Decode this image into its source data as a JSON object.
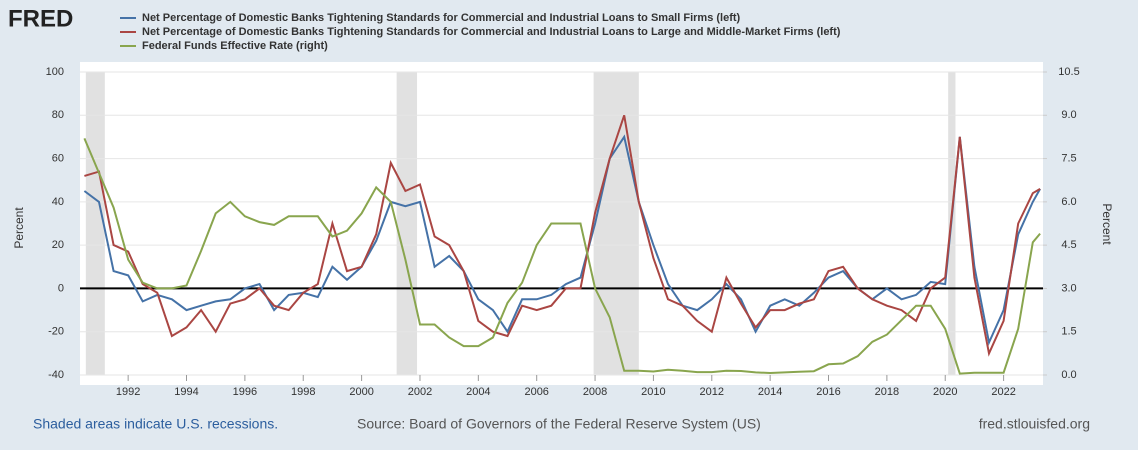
{
  "chart_data": {
    "type": "line",
    "logo": "FRED",
    "footnote": "Shaded areas indicate U.S. recessions.",
    "source": "Source: Board of Governors of the Federal Reserve System (US)",
    "site": "fred.stlouisfed.org",
    "ylabel": "Percent",
    "y2label": "Percent",
    "xlim": [
      1990.35,
      2023.35
    ],
    "xticks": [
      1992,
      1994,
      1996,
      1998,
      2000,
      2002,
      2004,
      2006,
      2008,
      2010,
      2012,
      2014,
      2016,
      2018,
      2020,
      2022
    ],
    "ylim": [
      -40,
      100
    ],
    "yticks": [
      -40,
      -20,
      0,
      20,
      40,
      60,
      80,
      100
    ],
    "y2lim": [
      0,
      10.5
    ],
    "y2ticks": [
      {
        "value": 0,
        "label": "0.0"
      },
      1.5,
      {
        "value": 3,
        "label": "3.0"
      },
      4.5,
      {
        "value": 6,
        "label": "6.0"
      },
      7.5,
      {
        "value": 9,
        "label": "9.0"
      },
      10.5
    ],
    "grid": true,
    "recessions": [
      [
        1990.55,
        1991.2
      ],
      [
        2001.2,
        2001.9
      ],
      [
        2007.95,
        2009.5
      ],
      [
        2020.1,
        2020.35
      ]
    ],
    "x": [
      1990.5,
      1991.0,
      1991.5,
      1992.0,
      1992.5,
      1993.0,
      1993.5,
      1994.0,
      1994.5,
      1995.0,
      1995.5,
      1996.0,
      1996.5,
      1997.0,
      1997.5,
      1998.0,
      1998.5,
      1999.0,
      1999.5,
      2000.0,
      2000.5,
      2001.0,
      2001.5,
      2002.0,
      2002.5,
      2003.0,
      2003.5,
      2004.0,
      2004.5,
      2005.0,
      2005.5,
      2006.0,
      2006.5,
      2007.0,
      2007.5,
      2008.0,
      2008.5,
      2009.0,
      2009.5,
      2010.0,
      2010.5,
      2011.0,
      2011.5,
      2012.0,
      2012.5,
      2013.0,
      2013.5,
      2014.0,
      2014.5,
      2015.0,
      2015.5,
      2016.0,
      2016.5,
      2017.0,
      2017.5,
      2018.0,
      2018.5,
      2019.0,
      2019.5,
      2020.0,
      2020.5,
      2021.0,
      2021.5,
      2022.0,
      2022.5,
      2023.0,
      2023.25
    ],
    "series": [
      {
        "name": "Net Percentage of Domestic Banks Tightening Standards for Commercial and Industrial Loans to Small Firms (left)",
        "color": "#4572a7",
        "values": [
          45,
          40,
          8,
          6,
          -6,
          -3,
          -5,
          -10,
          -8,
          -6,
          -5,
          0,
          2,
          -10,
          -3,
          -2,
          -4,
          10,
          4,
          10,
          22,
          40,
          38,
          40,
          10,
          15,
          8,
          -5,
          -10,
          -20,
          -5,
          -5,
          -3,
          2,
          5,
          30,
          60,
          70,
          40,
          20,
          2,
          -8,
          -10,
          -5,
          2,
          -5,
          -20,
          -8,
          -5,
          -8,
          -2,
          5,
          8,
          0,
          -5,
          0,
          -5,
          -3,
          3,
          2,
          70,
          10,
          -25,
          -10,
          25,
          40,
          46
        ]
      },
      {
        "name": "Net Percentage of Domestic Banks Tightening Standards for Commercial and Industrial Loans to Large and Middle-Market Firms (left)",
        "color": "#aa4643",
        "values": [
          52,
          54,
          20,
          17,
          2,
          -2,
          -22,
          -18,
          -10,
          -20,
          -7,
          -5,
          0,
          -8,
          -10,
          -2,
          2,
          30,
          8,
          10,
          25,
          58,
          45,
          48,
          24,
          20,
          8,
          -15,
          -20,
          -22,
          -8,
          -10,
          -8,
          0,
          0,
          35,
          60,
          80,
          40,
          14,
          -5,
          -8,
          -15,
          -20,
          5,
          -7,
          -18,
          -10,
          -10,
          -7,
          -5,
          8,
          10,
          0,
          -5,
          -8,
          -10,
          -15,
          0,
          5,
          70,
          5,
          -30,
          -15,
          30,
          44,
          46
        ]
      },
      {
        "name": "Federal Funds Effective Rate (right)",
        "color": "#89a54e",
        "axis": "y2",
        "values": [
          8.2,
          7.0,
          5.8,
          4.0,
          3.2,
          3.0,
          3.0,
          3.1,
          4.3,
          5.6,
          6.0,
          5.5,
          5.3,
          5.2,
          5.5,
          5.5,
          5.5,
          4.8,
          5.0,
          5.6,
          6.5,
          6.0,
          4.0,
          1.75,
          1.75,
          1.3,
          1.0,
          1.0,
          1.3,
          2.5,
          3.2,
          4.5,
          5.25,
          5.25,
          5.25,
          3.0,
          2.0,
          0.15,
          0.15,
          0.12,
          0.18,
          0.15,
          0.1,
          0.1,
          0.15,
          0.14,
          0.09,
          0.07,
          0.09,
          0.11,
          0.13,
          0.37,
          0.4,
          0.65,
          1.15,
          1.4,
          1.9,
          2.4,
          2.4,
          1.6,
          0.05,
          0.08,
          0.08,
          0.08,
          1.6,
          4.6,
          4.9
        ]
      }
    ]
  }
}
